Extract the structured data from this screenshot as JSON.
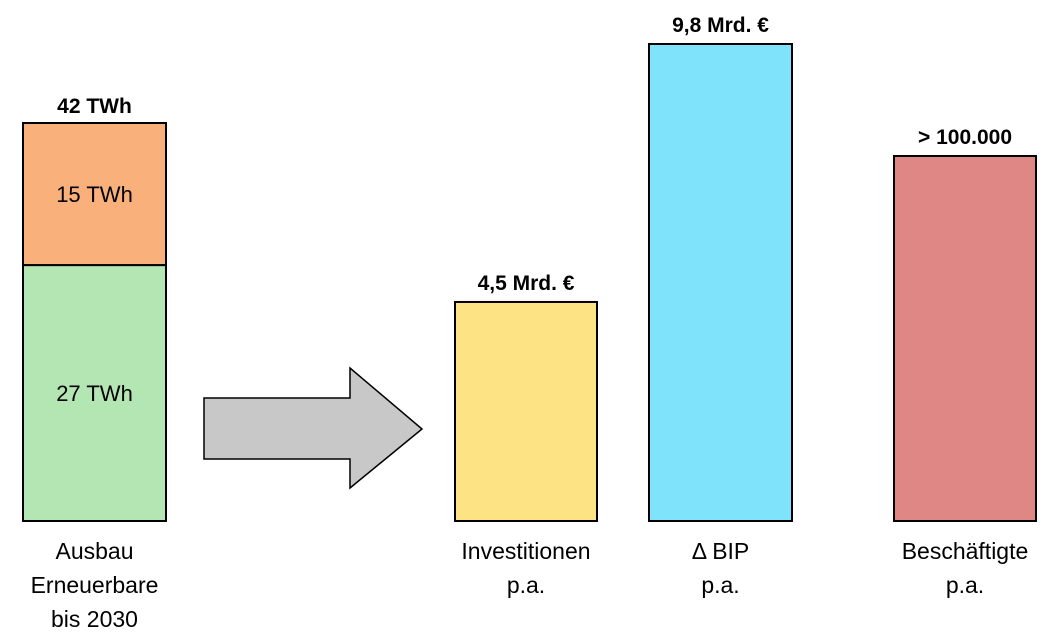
{
  "chart_data": {
    "type": "bar",
    "title": "",
    "xlabel": "",
    "ylabel": "",
    "stack": {
      "total_label": "42 TWh",
      "category": [
        "Ausbau",
        "Erneuerbare",
        "bis 2030"
      ],
      "segments": [
        {
          "value": 15,
          "label": "15 TWh",
          "color": "#f9b07b"
        },
        {
          "value": 27,
          "label": "27 TWh",
          "color": "#b3e6b3"
        }
      ]
    },
    "bars": [
      {
        "value": 4.5,
        "value_label": "4,5 Mrd. €",
        "category": [
          "Investitionen",
          "p.a."
        ],
        "color": "#fde383"
      },
      {
        "value": 9.8,
        "value_label": "9,8 Mrd. €",
        "category": [
          "Δ BIP",
          "p.a."
        ],
        "color": "#7fe3fc"
      },
      {
        "value": 100000,
        "value_label": "> 100.000",
        "category": [
          "Beschäftigte",
          "p.a."
        ],
        "color": "#de8784"
      }
    ],
    "arrow_color": "#c8c8c8"
  }
}
